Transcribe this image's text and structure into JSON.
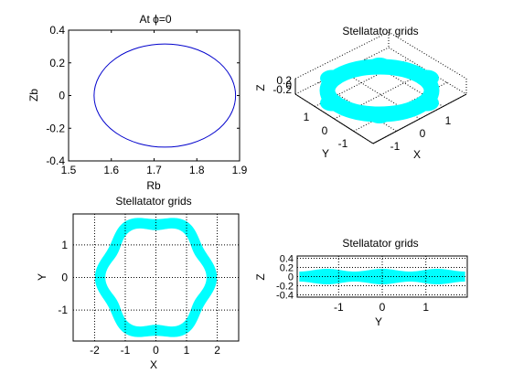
{
  "chart_data": [
    {
      "id": "cross_section",
      "type": "line",
      "title": "At ϕ=0",
      "xlabel": "Rb",
      "ylabel": "Zb",
      "xlim": [
        1.5,
        1.9
      ],
      "ylim": [
        -0.4,
        0.4
      ],
      "x_ticks": [
        "1.5",
        "1.6",
        "1.7",
        "1.8",
        "1.9"
      ],
      "y_ticks": [
        "0.4",
        "0.2",
        "0",
        "-0.2",
        "-0.4"
      ],
      "grid": false,
      "series": [
        {
          "color": "#0000cc",
          "shape": "ellipse",
          "center": [
            1.7251,
            0.0
          ],
          "semi_axes": [
            0.1655,
            0.3157
          ]
        }
      ]
    },
    {
      "id": "grid_3d",
      "type": "scatter",
      "title": "Stellatator grids",
      "xlabel": "X",
      "ylabel": "Y",
      "zlabel": "Z",
      "x_ticks": [
        "-1",
        "0",
        "1"
      ],
      "y_ticks": [
        "1",
        "0",
        "-1"
      ],
      "z_ticks": [
        "0.2",
        "0",
        "-0.2"
      ],
      "view": "3d",
      "grid": true,
      "color": "#00ffff"
    },
    {
      "id": "top_view",
      "type": "scatter",
      "title": "Stellatator grids",
      "xlabel": "X",
      "ylabel": "Y",
      "xlim": [
        -2.7,
        2.7
      ],
      "ylim": [
        -1.95,
        1.95
      ],
      "x_ticks": [
        "-2",
        "-1",
        "0",
        "1",
        "2"
      ],
      "y_ticks": [
        "1",
        "0",
        "-1"
      ],
      "grid": true,
      "color": "#00ffff",
      "torus": {
        "major_radius_mid": 1.72,
        "ripple_amplitude": 0.1,
        "field_periods": 6,
        "minor_radius": 0.17
      }
    },
    {
      "id": "side_view",
      "type": "scatter",
      "title": "Stellatator grids",
      "xlabel": "Y",
      "ylabel": "Z",
      "xlim": [
        -1.95,
        1.95
      ],
      "ylim": [
        -0.45,
        0.45
      ],
      "x_ticks": [
        "-1",
        "0",
        "1"
      ],
      "y_ticks": [
        "0.4",
        "0.2",
        "0",
        "-0.2",
        "-0.4"
      ],
      "grid": true,
      "color": "#00ffff"
    }
  ]
}
